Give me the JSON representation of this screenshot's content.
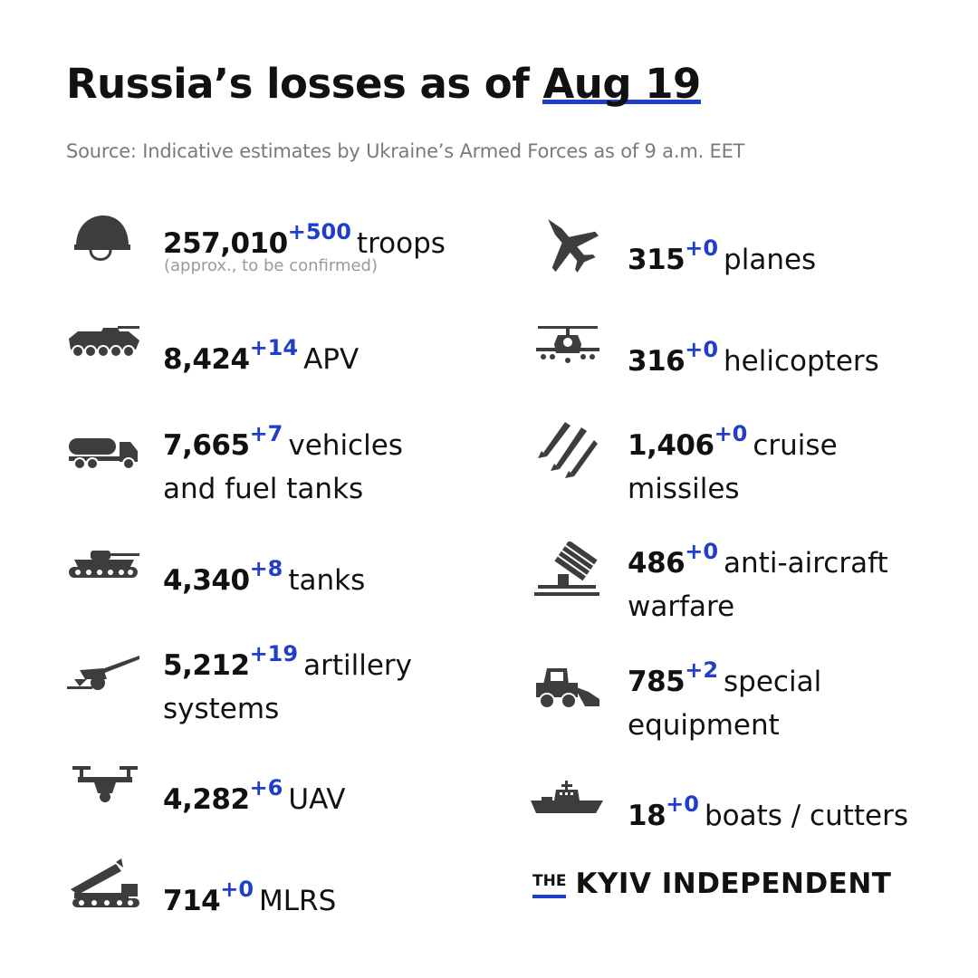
{
  "header": {
    "title": "Russia’s losses as of",
    "date": "Aug 19",
    "source": "Source: Indicative estimates by Ukraine’s Armed Forces as of 9 a.m. EET"
  },
  "items": [
    {
      "icon": "helmet-icon",
      "value": "257,010",
      "delta": "+500",
      "label": "troops",
      "note": "(approx., to be confirmed)"
    },
    {
      "icon": "apv-icon",
      "value": "8,424",
      "delta": "+14",
      "label": "APV"
    },
    {
      "icon": "fuel-truck-icon",
      "value": "7,665",
      "delta": "+7",
      "label": "vehicles",
      "label2": "and fuel tanks"
    },
    {
      "icon": "tank-icon",
      "value": "4,340",
      "delta": "+8",
      "label": "tanks"
    },
    {
      "icon": "artillery-icon",
      "value": "5,212",
      "delta": "+19",
      "label": "artillery",
      "label2": "systems"
    },
    {
      "icon": "drone-icon",
      "value": "4,282",
      "delta": "+6",
      "label": "UAV"
    },
    {
      "icon": "mlrs-icon",
      "value": "714",
      "delta": "+0",
      "label": "MLRS"
    },
    {
      "icon": "jet-icon",
      "value": "315",
      "delta": "+0",
      "label": "planes"
    },
    {
      "icon": "helicopter-icon",
      "value": "316",
      "delta": "+0",
      "label": "helicopters"
    },
    {
      "icon": "missile-icon",
      "value": "1,406",
      "delta": "+0",
      "label": "cruise",
      "label2": "missiles"
    },
    {
      "icon": "anti-aircraft-icon",
      "value": "486",
      "delta": "+0",
      "label": "anti-aircraft",
      "label2": "warfare"
    },
    {
      "icon": "loader-icon",
      "value": "785",
      "delta": "+2",
      "label": "special",
      "label2": "equipment"
    },
    {
      "icon": "ship-icon",
      "value": "18",
      "delta": "+0",
      "label": "boats / cutters"
    }
  ],
  "brand": {
    "the": "THE",
    "name": "KYIV INDEPENDENT"
  },
  "colors": {
    "accent": "#1f3ec9",
    "text": "#111111",
    "muted": "#7a7a7a",
    "icon": "#3d3d3d"
  }
}
